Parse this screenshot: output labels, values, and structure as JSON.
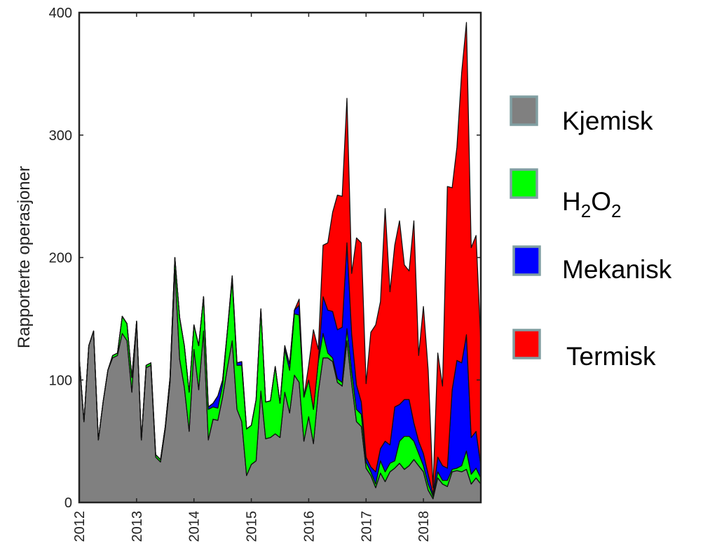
{
  "chart_data": {
    "type": "area",
    "stacked": true,
    "title": "",
    "xlabel": "",
    "ylabel": "Rapporterte operasjoner",
    "xlim": [
      2012,
      2019
    ],
    "ylim": [
      0,
      400
    ],
    "x_ticks": [
      "2012",
      "2013",
      "2014",
      "2015",
      "2016",
      "2017",
      "2018"
    ],
    "y_ticks": [
      "0",
      "100",
      "200",
      "300",
      "400"
    ],
    "grid": false,
    "legend_position": "right",
    "x": [
      2012.0,
      2012.083,
      2012.167,
      2012.25,
      2012.333,
      2012.417,
      2012.5,
      2012.583,
      2012.667,
      2012.75,
      2012.833,
      2012.917,
      2013.0,
      2013.083,
      2013.167,
      2013.25,
      2013.333,
      2013.417,
      2013.5,
      2013.583,
      2013.667,
      2013.75,
      2013.833,
      2013.917,
      2014.0,
      2014.083,
      2014.167,
      2014.25,
      2014.333,
      2014.417,
      2014.5,
      2014.583,
      2014.667,
      2014.75,
      2014.833,
      2014.917,
      2015.0,
      2015.083,
      2015.167,
      2015.25,
      2015.333,
      2015.417,
      2015.5,
      2015.583,
      2015.667,
      2015.75,
      2015.833,
      2015.917,
      2016.0,
      2016.083,
      2016.167,
      2016.25,
      2016.333,
      2016.417,
      2016.5,
      2016.583,
      2016.667,
      2016.75,
      2016.833,
      2016.917,
      2017.0,
      2017.083,
      2017.167,
      2017.25,
      2017.333,
      2017.417,
      2017.5,
      2017.583,
      2017.667,
      2017.75,
      2017.833,
      2017.917,
      2018.0,
      2018.083,
      2018.167,
      2018.25,
      2018.333,
      2018.417,
      2018.5,
      2018.583,
      2018.667,
      2018.75,
      2018.833,
      2018.917,
      2019.0
    ],
    "series": [
      {
        "name": "Kjemisk",
        "color": "#808080",
        "values": [
          118,
          66,
          128,
          140,
          51,
          82,
          108,
          118,
          120,
          138,
          132,
          90,
          148,
          51,
          110,
          112,
          37,
          33,
          60,
          98,
          190,
          117,
          94,
          58,
          125,
          92,
          140,
          51,
          68,
          67,
          86,
          110,
          132,
          76,
          66,
          22,
          31,
          34,
          91,
          52,
          53,
          56,
          53,
          90,
          73,
          104,
          98,
          50,
          70,
          48,
          90,
          118,
          118,
          115,
          98,
          95,
          132,
          97,
          66,
          62,
          28,
          22,
          12,
          24,
          17,
          25,
          28,
          32,
          27,
          30,
          35,
          30,
          25,
          10,
          3,
          20,
          15,
          13,
          25,
          26,
          25,
          27,
          15,
          20,
          15
        ]
      },
      {
        "name": "H2O2",
        "color": "#00ff00",
        "values": [
          0,
          0,
          0,
          0,
          0,
          0,
          0,
          2,
          2,
          14,
          14,
          12,
          0,
          0,
          2,
          2,
          2,
          2,
          2,
          4,
          10,
          34,
          34,
          32,
          20,
          36,
          28,
          25,
          10,
          10,
          10,
          30,
          50,
          36,
          46,
          38,
          32,
          50,
          67,
          30,
          30,
          55,
          28,
          35,
          35,
          50,
          55,
          36,
          30,
          28,
          25,
          20,
          4,
          3,
          3,
          3,
          10,
          10,
          10,
          10,
          5,
          3,
          3,
          10,
          8,
          7,
          6,
          18,
          27,
          24,
          15,
          10,
          5,
          5,
          2,
          5,
          3,
          5,
          2,
          2,
          5,
          15,
          8,
          8,
          5
        ]
      },
      {
        "name": "Mekanisk",
        "color": "#0000ff",
        "values": [
          0,
          0,
          0,
          0,
          0,
          0,
          0,
          0,
          0,
          0,
          0,
          0,
          0,
          0,
          0,
          0,
          0,
          0,
          0,
          0,
          0,
          0,
          0,
          0,
          0,
          0,
          0,
          2,
          3,
          10,
          4,
          0,
          3,
          2,
          3,
          0,
          0,
          0,
          0,
          0,
          0,
          0,
          0,
          3,
          5,
          3,
          8,
          0,
          0,
          0,
          0,
          30,
          35,
          38,
          40,
          45,
          70,
          30,
          20,
          10,
          4,
          4,
          10,
          10,
          25,
          15,
          44,
          30,
          30,
          30,
          15,
          10,
          10,
          8,
          2,
          12,
          12,
          10,
          65,
          88,
          84,
          95,
          30,
          30,
          10
        ]
      },
      {
        "name": "Termisk",
        "color": "#ff0000",
        "values": [
          0,
          0,
          0,
          0,
          0,
          0,
          0,
          0,
          0,
          0,
          0,
          0,
          0,
          0,
          0,
          0,
          0,
          0,
          0,
          0,
          0,
          0,
          0,
          0,
          0,
          0,
          0,
          0,
          0,
          0,
          0,
          0,
          0,
          0,
          0,
          0,
          0,
          0,
          0,
          0,
          0,
          0,
          0,
          0,
          0,
          0,
          5,
          0,
          12,
          65,
          10,
          42,
          55,
          81,
          110,
          107,
          118,
          50,
          120,
          130,
          60,
          110,
          120,
          120,
          190,
          125,
          132,
          150,
          110,
          105,
          165,
          70,
          120,
          85,
          5,
          85,
          65,
          230,
          165,
          174,
          237,
          255,
          155,
          160,
          100
        ]
      }
    ]
  },
  "legend": {
    "items": [
      {
        "label": "Kjemisk",
        "sub": "",
        "label_tail": ""
      },
      {
        "label": "H",
        "sub": "2",
        "label_mid": "O",
        "sub2": "2"
      },
      {
        "label": "Mekanisk"
      },
      {
        "label": "Termisk"
      }
    ]
  }
}
